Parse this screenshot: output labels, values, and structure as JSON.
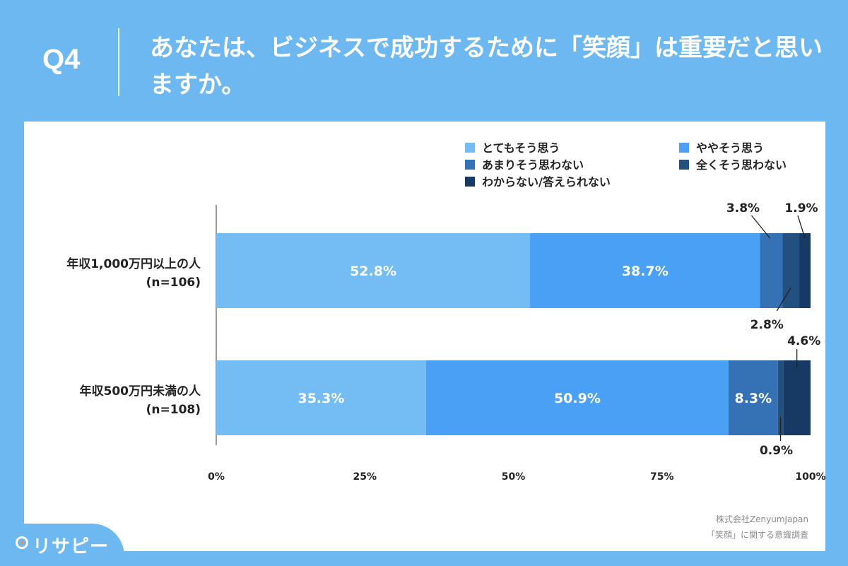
{
  "question": {
    "number": "Q4",
    "text": "あなたは、ビジネスで成功するために「笑顔」は重要だと思いますか。"
  },
  "brand": {
    "name": "リサピー",
    "icon": "pin-icon"
  },
  "source": {
    "line1": "株式会社ZenyumJapan",
    "line2": "「笑顔」に関する意識調査"
  },
  "colors": {
    "background": "#6db8f0",
    "panel": "#ffffff"
  },
  "chart_data": {
    "type": "bar",
    "orientation": "horizontal",
    "stacked": true,
    "normalized_percent": true,
    "title": "",
    "xlabel": "",
    "ylabel": "",
    "xlim": [
      0,
      100
    ],
    "x_ticks": [
      "0%",
      "25%",
      "50%",
      "75%",
      "100%"
    ],
    "grid": false,
    "legend_position": "top-right",
    "categories": [
      {
        "label": "年収1,000万円以上の人",
        "n": "(n=106)"
      },
      {
        "label": "年収500万円未満の人",
        "n": "(n=108)"
      }
    ],
    "series": [
      {
        "name": "とてもそう思う",
        "color": "#73bdf4",
        "values": [
          52.8,
          35.3
        ],
        "labels": [
          "52.8%",
          "35.3%"
        ]
      },
      {
        "name": "ややそう思う",
        "color": "#4aa0f5",
        "values": [
          38.7,
          50.9
        ],
        "labels": [
          "38.7%",
          "50.9%"
        ]
      },
      {
        "name": "あまりそう思わない",
        "color": "#3571b5",
        "values": [
          3.8,
          8.3
        ],
        "labels": [
          "3.8%",
          "8.3%"
        ]
      },
      {
        "name": "全くそう思わない",
        "color": "#23517f",
        "values": [
          2.8,
          0.9
        ],
        "labels": [
          "2.8%",
          "0.9%"
        ]
      },
      {
        "name": "わからない/答えられない",
        "color": "#163a63",
        "values": [
          1.9,
          4.6
        ],
        "labels": [
          "1.9%",
          "4.6%"
        ]
      }
    ]
  }
}
